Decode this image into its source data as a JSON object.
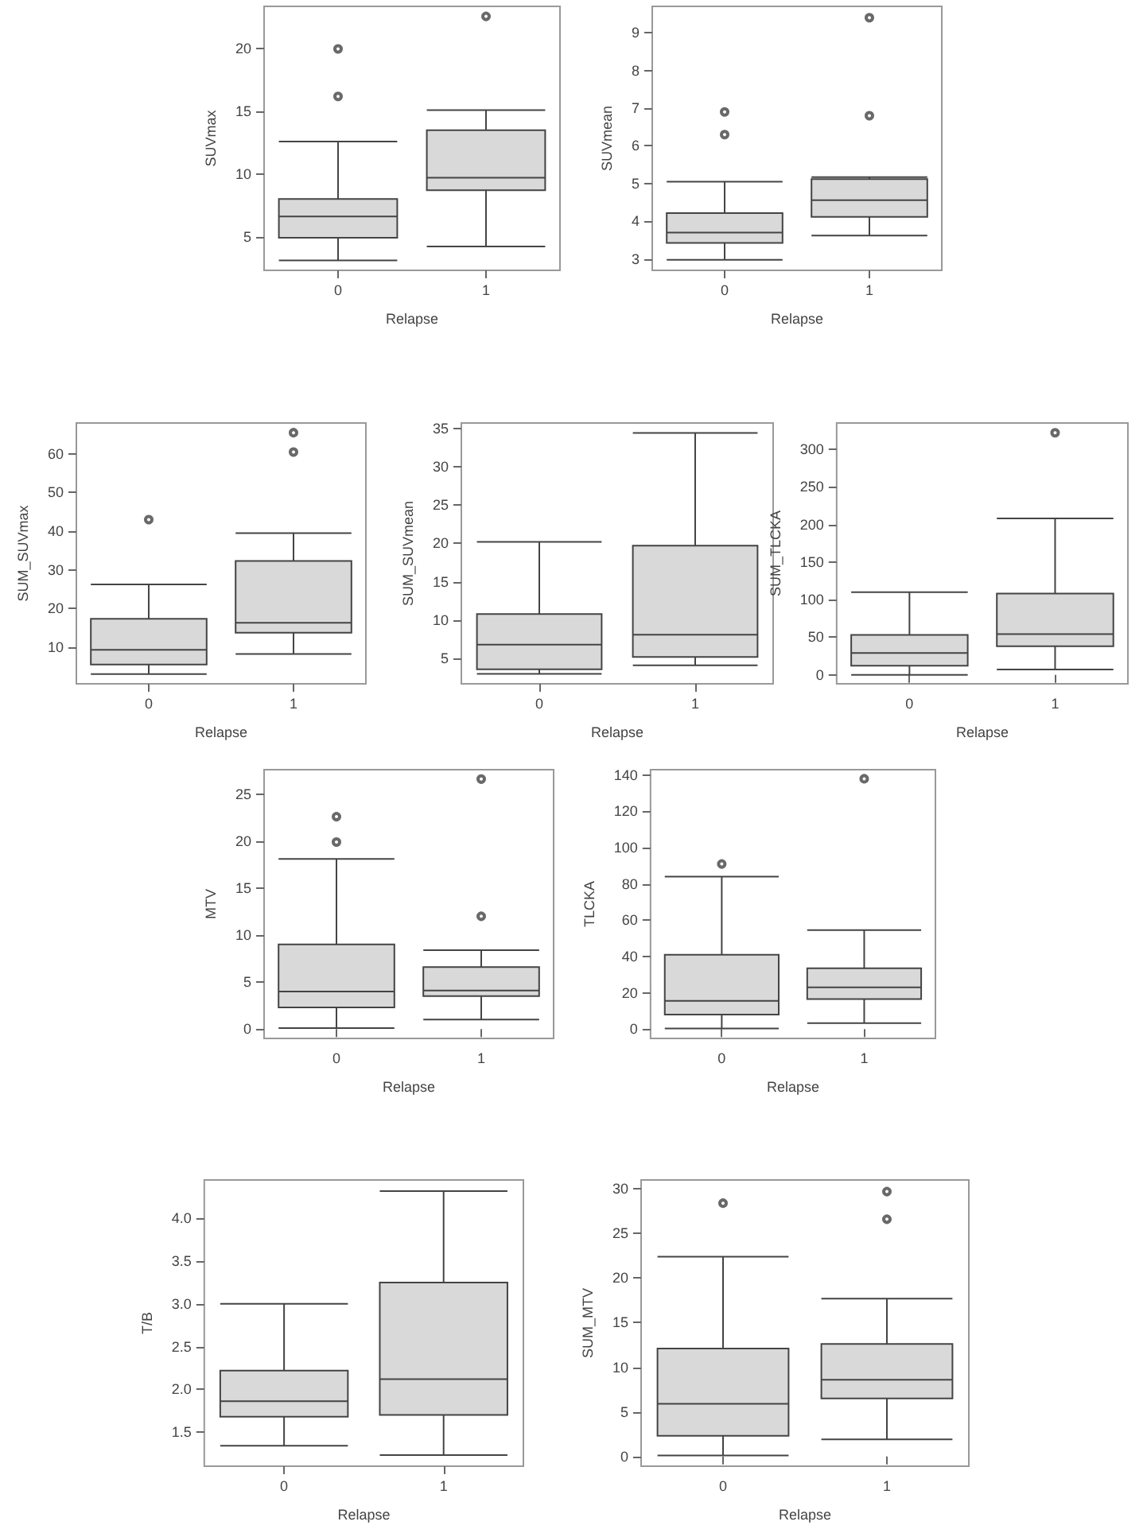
{
  "chart_data": [
    {
      "type": "box",
      "xlabel": "Relapse",
      "ylabel": "SUVmax",
      "categories": [
        "0",
        "1"
      ],
      "color": "#d9d9d9",
      "grid": false,
      "ylim": [
        2.3,
        23.4
      ],
      "yticks": [
        5,
        10,
        15,
        20
      ],
      "boxes": [
        {
          "low": 3.1,
          "q1": 4.9,
          "median": 6.6,
          "q3": 8.0,
          "high": 12.6,
          "outliers": [
            16.2,
            20
          ]
        },
        {
          "low": 4.2,
          "q1": 8.7,
          "median": 9.7,
          "q3": 13.5,
          "high": 15.1,
          "outliers": [
            22.6
          ]
        }
      ]
    },
    {
      "type": "box",
      "xlabel": "Relapse",
      "ylabel": "SUVmean",
      "categories": [
        "0",
        "1"
      ],
      "color": "#d9d9d9",
      "grid": false,
      "ylim": [
        2.7,
        9.7
      ],
      "yticks": [
        3,
        4,
        5,
        6,
        7,
        8,
        9
      ],
      "boxes": [
        {
          "low": 2.98,
          "q1": 3.43,
          "median": 3.7,
          "q3": 4.22,
          "high": 5.05,
          "outliers": [
            6.3,
            6.9
          ]
        },
        {
          "low": 3.62,
          "q1": 4.12,
          "median": 4.56,
          "q3": 5.12,
          "high": 5.17,
          "outliers": [
            6.8,
            9.4
          ]
        }
      ]
    },
    {
      "type": "box",
      "xlabel": "Relapse",
      "ylabel": "SUM_SUVmax",
      "categories": [
        "0",
        "1"
      ],
      "color": "#d9d9d9",
      "grid": false,
      "ylim": [
        0.5,
        68
      ],
      "yticks": [
        10,
        20,
        30,
        40,
        50,
        60
      ],
      "boxes": [
        {
          "low": 3,
          "q1": 5.5,
          "median": 9.3,
          "q3": 17.3,
          "high": 26.2,
          "outliers": [
            43
          ]
        },
        {
          "low": 8.2,
          "q1": 13.7,
          "median": 16.3,
          "q3": 32.3,
          "high": 39.5,
          "outliers": [
            60.5,
            65.5
          ]
        }
      ]
    },
    {
      "type": "box",
      "xlabel": "Relapse",
      "ylabel": "SUM_SUVmean",
      "categories": [
        "0",
        "1"
      ],
      "color": "#d9d9d9",
      "grid": false,
      "ylim": [
        1.7,
        35.7
      ],
      "yticks": [
        5,
        10,
        15,
        20,
        25,
        30,
        35
      ],
      "boxes": [
        {
          "low": 3,
          "q1": 3.6,
          "median": 6.8,
          "q3": 10.8,
          "high": 20.2
        },
        {
          "low": 4.1,
          "q1": 5.2,
          "median": 8.1,
          "q3": 19.7,
          "high": 34.4
        }
      ]
    },
    {
      "type": "box",
      "xlabel": "Relapse",
      "ylabel": "SUM_TLCKA",
      "categories": [
        "0",
        "1"
      ],
      "color": "#d9d9d9",
      "grid": false,
      "ylim": [
        -12,
        335
      ],
      "yticks": [
        0,
        50,
        100,
        150,
        200,
        250,
        300
      ],
      "boxes": [
        {
          "low": 0,
          "q1": 12,
          "median": 29,
          "q3": 53,
          "high": 110
        },
        {
          "low": 7,
          "q1": 38,
          "median": 54,
          "q3": 108,
          "high": 208,
          "outliers": [
            322
          ]
        }
      ]
    },
    {
      "type": "box",
      "xlabel": "Relapse",
      "ylabel": "MTV",
      "categories": [
        "0",
        "1"
      ],
      "color": "#d9d9d9",
      "grid": false,
      "ylim": [
        -1,
        27.6
      ],
      "yticks": [
        0,
        5,
        10,
        15,
        20,
        25
      ],
      "boxes": [
        {
          "low": 0.1,
          "q1": 2.3,
          "median": 4.0,
          "q3": 9.0,
          "high": 18.1,
          "outliers": [
            19.9,
            22.6
          ]
        },
        {
          "low": 1.0,
          "q1": 3.5,
          "median": 4.1,
          "q3": 6.6,
          "high": 8.4,
          "outliers": [
            12,
            26.6
          ]
        }
      ]
    },
    {
      "type": "box",
      "xlabel": "Relapse",
      "ylabel": "TLCKA",
      "categories": [
        "0",
        "1"
      ],
      "color": "#d9d9d9",
      "grid": false,
      "ylim": [
        -5.2,
        143
      ],
      "yticks": [
        0,
        20,
        40,
        60,
        80,
        100,
        120,
        140
      ],
      "boxes": [
        {
          "low": 0.3,
          "q1": 8,
          "median": 15.5,
          "q3": 41,
          "high": 84,
          "outliers": [
            91
          ]
        },
        {
          "low": 3.2,
          "q1": 16.5,
          "median": 23,
          "q3": 33.5,
          "high": 54.5,
          "outliers": [
            138
          ]
        }
      ]
    },
    {
      "type": "box",
      "xlabel": "Relapse",
      "ylabel": "T/B",
      "categories": [
        "0",
        "1"
      ],
      "color": "#d9d9d9",
      "grid": false,
      "ylim": [
        1.1,
        4.45
      ],
      "yticks": [
        1.5,
        {
          "value": 2,
          "label": "2.0"
        },
        2.5,
        {
          "value": 3,
          "label": "3.0"
        },
        3.5,
        {
          "value": 4,
          "label": "4.0"
        }
      ],
      "boxes": [
        {
          "low": 1.34,
          "q1": 1.68,
          "median": 1.86,
          "q3": 2.22,
          "high": 3.0
        },
        {
          "low": 1.23,
          "q1": 1.7,
          "median": 2.12,
          "q3": 3.25,
          "high": 4.32
        }
      ]
    },
    {
      "type": "box",
      "xlabel": "Relapse",
      "ylabel": "SUM_MTV",
      "categories": [
        "0",
        "1"
      ],
      "color": "#d9d9d9",
      "grid": false,
      "ylim": [
        -1.1,
        31
      ],
      "yticks": [
        0,
        5,
        10,
        15,
        20,
        25,
        30
      ],
      "boxes": [
        {
          "low": 0.1,
          "q1": 2.3,
          "median": 5.9,
          "q3": 12.1,
          "high": 22.4,
          "outliers": [
            28.4
          ]
        },
        {
          "low": 1.9,
          "q1": 6.5,
          "median": 8.6,
          "q3": 12.6,
          "high": 17.7,
          "outliers": [
            26.6,
            29.7
          ]
        }
      ]
    }
  ]
}
